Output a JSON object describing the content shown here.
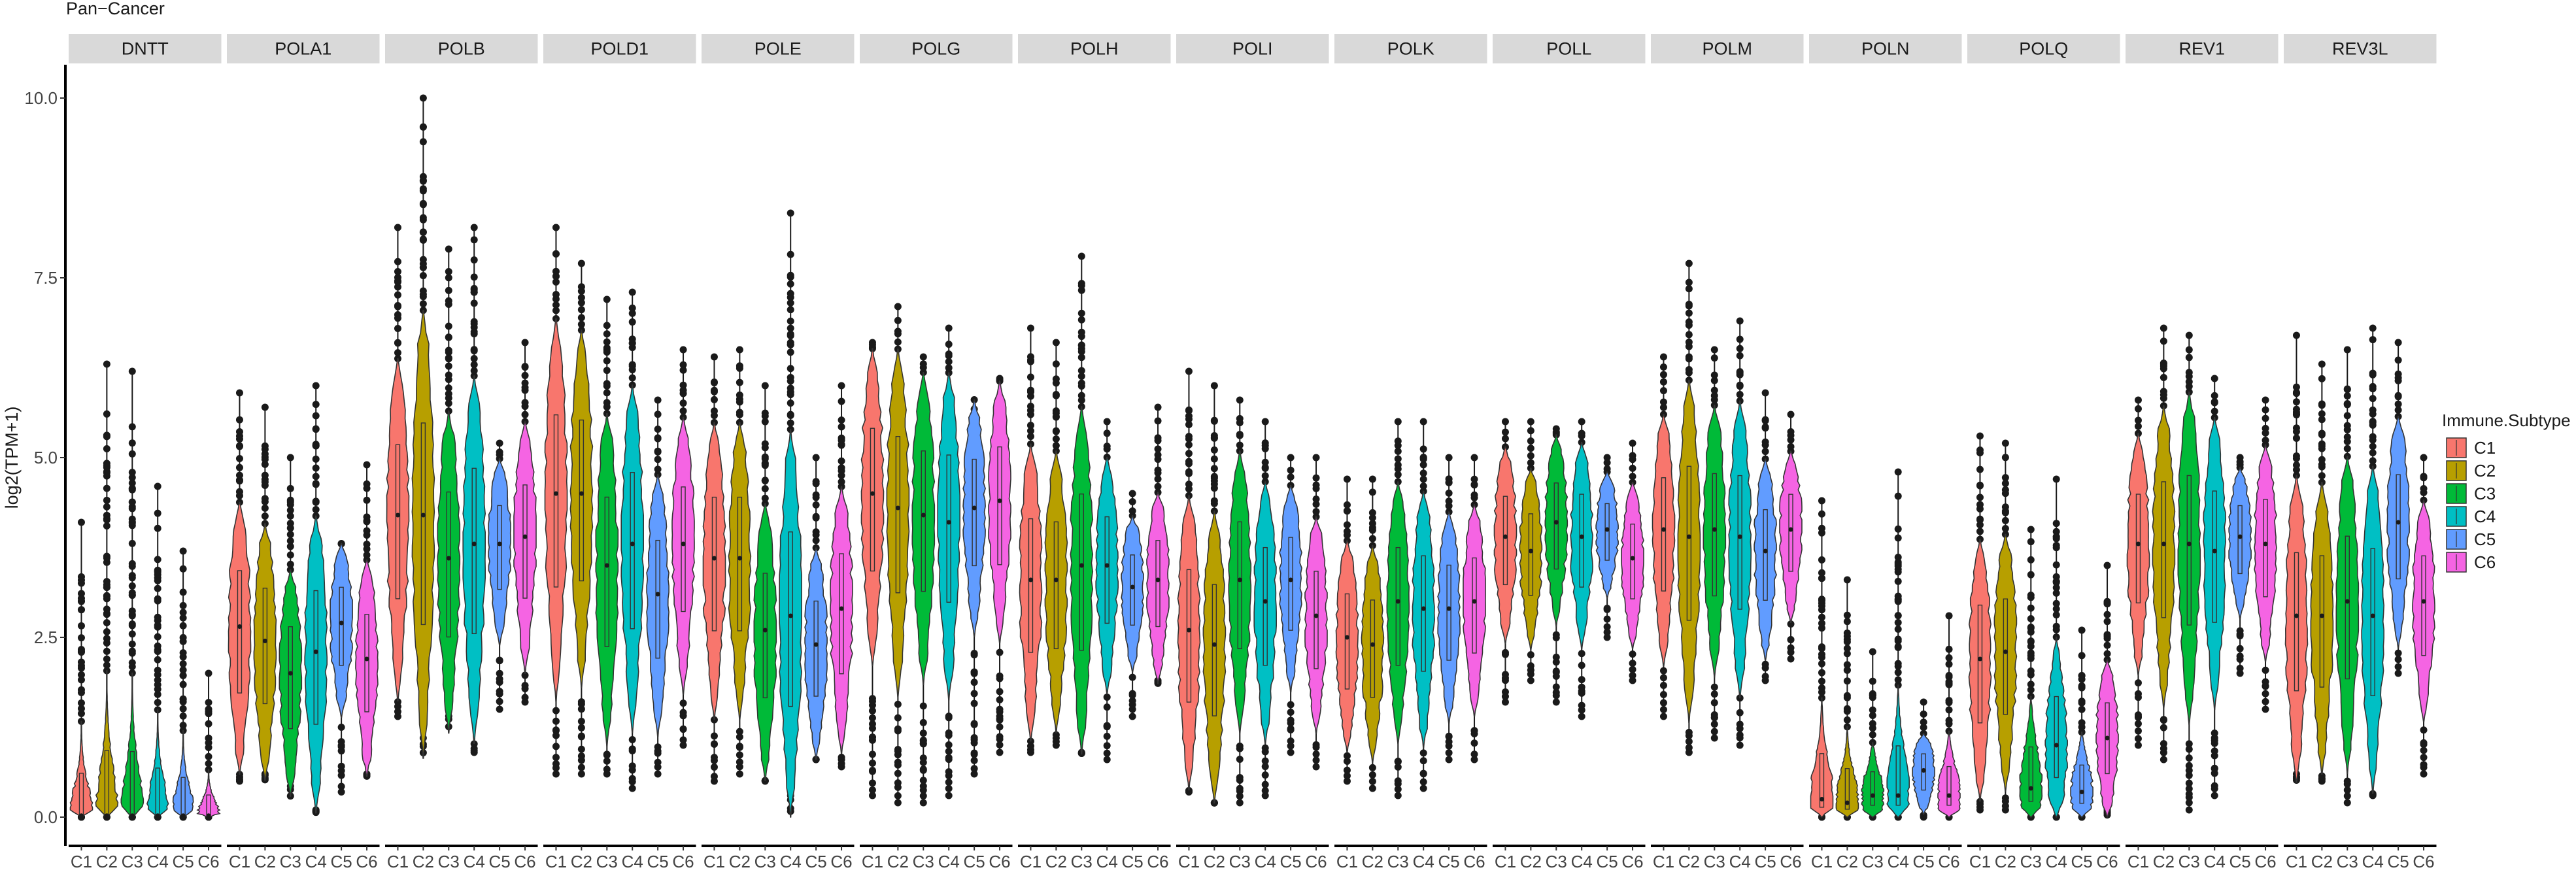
{
  "chart_data": {
    "type": "violin",
    "title": "Pan−Cancer",
    "ylabel": "log2(TPM+1)",
    "xlabel": "",
    "ylim": [
      0,
      10
    ],
    "yticks": [
      0.0,
      2.5,
      5.0,
      7.5,
      10.0
    ],
    "ytick_labels": [
      "0.0",
      "2.5",
      "5.0",
      "7.5",
      "10.0"
    ],
    "categories": [
      "C1",
      "C2",
      "C3",
      "C4",
      "C5",
      "C6"
    ],
    "legend": {
      "title": "Immune.Subtype",
      "entries": [
        "C1",
        "C2",
        "C3",
        "C4",
        "C5",
        "C6"
      ],
      "colors": [
        "#F8766D",
        "#B79F00",
        "#00BA38",
        "#00BFC4",
        "#619CFF",
        "#F564E3"
      ],
      "position": "right"
    },
    "panels": [
      {
        "gene": "DNTT",
        "median": [
          0.02,
          0.02,
          0.02,
          0.02,
          0.02,
          0.02
        ],
        "max": [
          4.1,
          6.3,
          6.2,
          4.6,
          3.7,
          2.0
        ],
        "min": [
          0,
          0,
          0,
          0,
          0,
          0
        ]
      },
      {
        "gene": "POLA1",
        "median": [
          2.65,
          2.45,
          2.0,
          2.3,
          2.7,
          2.2
        ],
        "max": [
          5.9,
          5.7,
          5.0,
          6.0,
          3.8,
          4.9
        ],
        "min": [
          0.5,
          0.6,
          0.5,
          0.1,
          0.35,
          0.6
        ]
      },
      {
        "gene": "POLB",
        "median": [
          4.2,
          4.2,
          3.6,
          3.8,
          3.8,
          3.9
        ],
        "max": [
          8.2,
          10.0,
          7.9,
          8.2,
          5.2,
          6.6
        ],
        "min": [
          1.4,
          1.1,
          1.5,
          0.9,
          1.5,
          1.6
        ]
      },
      {
        "gene": "POLD1",
        "median": [
          4.5,
          4.5,
          3.5,
          3.8,
          3.1,
          3.8
        ],
        "max": [
          8.2,
          7.7,
          7.2,
          7.3,
          5.8,
          6.5
        ],
        "min": [
          0.6,
          0.6,
          0.6,
          0.4,
          0.6,
          1.0
        ]
      },
      {
        "gene": "POLE",
        "median": [
          3.6,
          3.6,
          2.6,
          2.8,
          2.4,
          2.9
        ],
        "max": [
          6.4,
          6.5,
          6.0,
          8.4,
          5.0,
          6.0
        ],
        "min": [
          0.5,
          0.6,
          0.5,
          0.3,
          0.8,
          0.7
        ]
      },
      {
        "gene": "POLG",
        "median": [
          4.5,
          4.3,
          4.2,
          4.1,
          4.3,
          4.4
        ],
        "max": [
          6.6,
          7.1,
          6.4,
          6.8,
          5.3,
          6.1
        ],
        "min": [
          0.3,
          0.2,
          0.2,
          0.3,
          0.6,
          0.9
        ]
      },
      {
        "gene": "POLH",
        "median": [
          3.3,
          3.3,
          3.5,
          3.5,
          3.2,
          3.3
        ],
        "max": [
          6.8,
          6.6,
          7.8,
          5.5,
          4.5,
          5.7
        ],
        "min": [
          0.9,
          1.0,
          0.9,
          0.8,
          1.4,
          1.9
        ]
      },
      {
        "gene": "POLI",
        "median": [
          2.6,
          2.4,
          3.3,
          3.0,
          3.3,
          2.8
        ],
        "max": [
          6.2,
          6.0,
          5.8,
          5.5,
          5.0,
          5.0
        ],
        "min": [
          0.35,
          0.2,
          0.2,
          0.3,
          0.9,
          0.7
        ]
      },
      {
        "gene": "POLK",
        "median": [
          2.5,
          2.4,
          3.0,
          2.9,
          2.9,
          3.0
        ],
        "max": [
          4.7,
          4.7,
          5.5,
          5.5,
          5.0,
          5.0
        ],
        "min": [
          0.5,
          0.4,
          0.3,
          0.4,
          0.8,
          0.8
        ]
      },
      {
        "gene": "POLL",
        "median": [
          3.9,
          3.7,
          4.1,
          3.9,
          4.0,
          3.6
        ],
        "max": [
          5.5,
          5.5,
          5.4,
          5.5,
          5.0,
          5.2
        ],
        "min": [
          1.6,
          1.9,
          1.6,
          1.4,
          2.5,
          1.9
        ]
      },
      {
        "gene": "POLM",
        "median": [
          4.0,
          3.9,
          4.0,
          3.9,
          3.7,
          4.0
        ],
        "max": [
          6.4,
          7.7,
          6.5,
          6.9,
          5.9,
          5.6
        ],
        "min": [
          1.4,
          0.9,
          1.1,
          1.0,
          1.9,
          2.2
        ]
      },
      {
        "gene": "POLN",
        "median": [
          0.25,
          0.2,
          0.3,
          0.3,
          0.65,
          0.3
        ],
        "max": [
          4.4,
          3.3,
          2.3,
          4.8,
          1.6,
          2.8
        ],
        "min": [
          0,
          0,
          0,
          0,
          0,
          0
        ]
      },
      {
        "gene": "POLQ",
        "median": [
          2.2,
          2.3,
          0.4,
          1.0,
          0.35,
          1.1
        ],
        "max": [
          5.3,
          5.2,
          4.0,
          4.7,
          2.6,
          3.5
        ],
        "min": [
          0.1,
          0.1,
          0.0,
          0.0,
          0.0,
          0.1
        ]
      },
      {
        "gene": "REV1",
        "median": [
          3.8,
          3.8,
          3.8,
          3.7,
          3.9,
          3.8
        ],
        "max": [
          5.8,
          6.8,
          6.7,
          6.1,
          5.0,
          5.8
        ],
        "min": [
          1.0,
          0.8,
          0.1,
          0.3,
          2.0,
          1.5
        ]
      },
      {
        "gene": "REV3L",
        "median": [
          2.8,
          2.8,
          3.0,
          2.8,
          4.1,
          3.0
        ],
        "max": [
          6.7,
          6.3,
          6.5,
          6.8,
          6.6,
          5.0
        ],
        "min": [
          0.6,
          0.5,
          0.2,
          0.3,
          2.0,
          0.6
        ]
      }
    ]
  }
}
